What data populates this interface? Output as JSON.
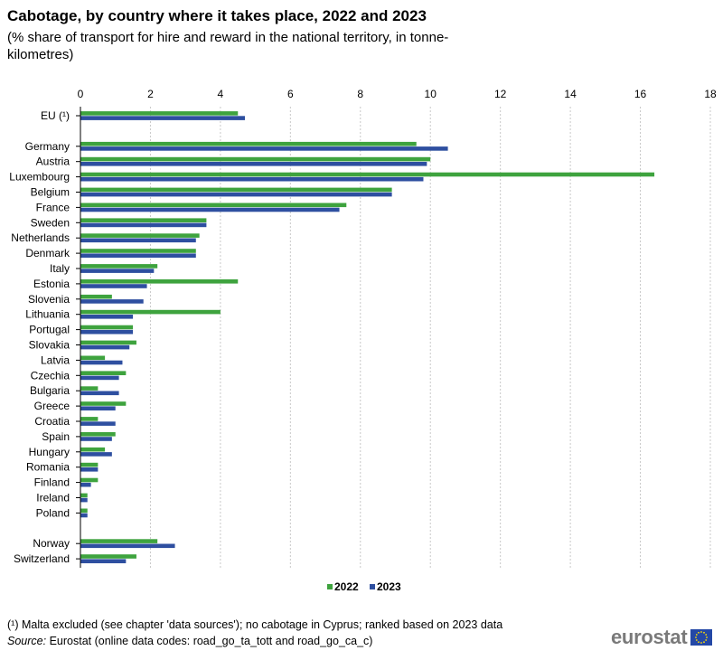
{
  "header": {
    "title": "Cabotage, by country where it takes place, 2022 and 2023",
    "subtitle": "(% share of transport for hire and reward in the national territory, in tonne-kilometres)"
  },
  "chart_data": {
    "type": "bar",
    "orientation": "horizontal",
    "xlim": [
      0,
      18
    ],
    "ticks": [
      0,
      2,
      4,
      6,
      8,
      10,
      12,
      14,
      16,
      18
    ],
    "grid": true,
    "legend_position": "bottom-center",
    "categories": [
      "EU (¹)",
      "Germany",
      "Austria",
      "Luxembourg",
      "Belgium",
      "France",
      "Sweden",
      "Netherlands",
      "Denmark",
      "Italy",
      "Estonia",
      "Slovenia",
      "Lithuania",
      "Portugal",
      "Slovakia",
      "Latvia",
      "Czechia",
      "Bulgaria",
      "Greece",
      "Croatia",
      "Spain",
      "Hungary",
      "Romania",
      "Finland",
      "Ireland",
      "Poland",
      "Norway",
      "Switzerland"
    ],
    "groups_before_gap": [
      1,
      26
    ],
    "series": [
      {
        "name": "2022",
        "color": "#3ea33e",
        "values": [
          4.5,
          9.6,
          10.0,
          16.4,
          8.9,
          7.6,
          3.6,
          3.4,
          3.3,
          2.2,
          4.5,
          0.9,
          4.0,
          1.5,
          1.6,
          0.7,
          1.3,
          0.5,
          1.3,
          0.5,
          1.0,
          0.7,
          0.5,
          0.5,
          0.2,
          0.2,
          2.2,
          1.6
        ]
      },
      {
        "name": "2023",
        "color": "#2e4fa0",
        "values": [
          4.7,
          10.5,
          9.9,
          9.8,
          8.9,
          7.4,
          3.6,
          3.3,
          3.3,
          2.1,
          1.9,
          1.8,
          1.5,
          1.5,
          1.4,
          1.2,
          1.1,
          1.1,
          1.0,
          1.0,
          0.9,
          0.9,
          0.5,
          0.3,
          0.2,
          0.2,
          2.7,
          1.3
        ]
      }
    ]
  },
  "footer": {
    "footnote": "(¹) Malta excluded (see chapter 'data sources'); no cabotage in Cyprus; ranked based on 2023 data",
    "source_label": "Source:",
    "source_text": " Eurostat (online data codes: road_go_ta_tott and road_go_ca_c)",
    "logo_text": "eurostat"
  }
}
